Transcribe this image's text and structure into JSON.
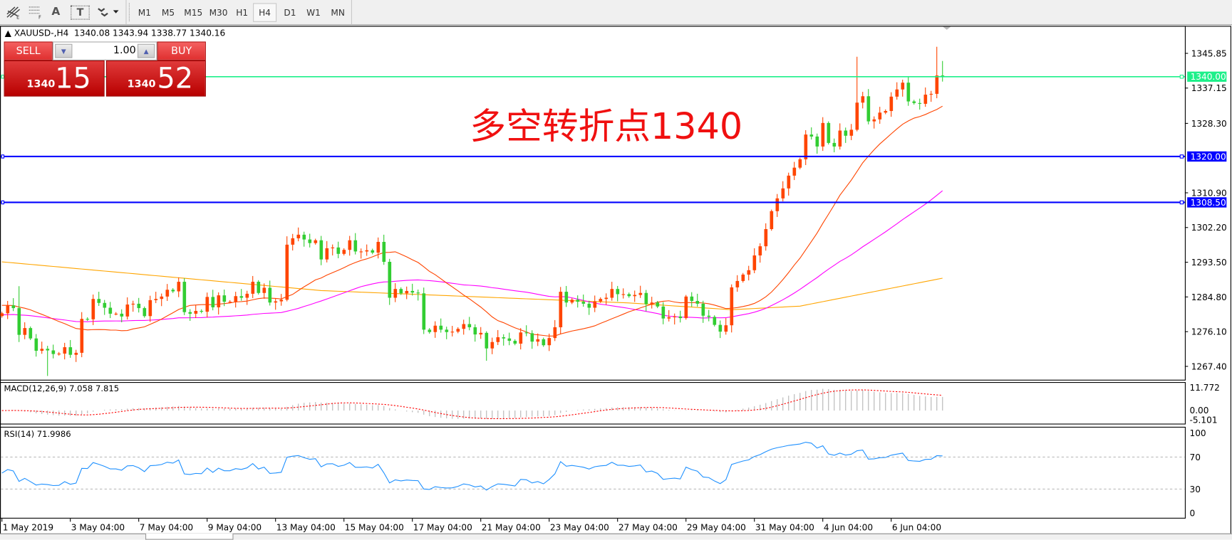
{
  "toolbar": {
    "tools": [
      {
        "icon": "fibonacci-fan-icon",
        "sub": "E"
      },
      {
        "icon": "fibonacci-grid-icon",
        "sub": "F"
      },
      {
        "icon": "text-icon",
        "label": "A"
      },
      {
        "icon": "text-label-icon",
        "label": "T"
      },
      {
        "icon": "arrows-dropdown-icon"
      }
    ],
    "timeframes": [
      "M1",
      "M5",
      "M15",
      "M30",
      "H1",
      "H4",
      "D1",
      "W1",
      "MN"
    ],
    "active_timeframe": "H4"
  },
  "chart": {
    "symbol": "XAUUSD-,H4",
    "ohlc": "1340.08 1343.94 1338.77 1340.16",
    "annotation": "多空转折点1340"
  },
  "trade": {
    "sell_label": "SELL",
    "buy_label": "BUY",
    "lot": "1.00",
    "sell_prefix": "1340",
    "sell_big": "15",
    "buy_prefix": "1340",
    "buy_big": "52"
  },
  "price_axis": {
    "ticks": [
      "1345.85",
      "1337.15",
      "1328.30",
      "1310.90",
      "1302.20",
      "1293.50",
      "1284.80",
      "1276.10",
      "1267.40"
    ],
    "levels": [
      {
        "price": 1340.0,
        "label": "1340.00",
        "color": "#1ef08a"
      },
      {
        "price": 1320.0,
        "label": "1320.00",
        "color": "#0000ff"
      },
      {
        "price": 1308.5,
        "label": "1308.50",
        "color": "#0000ff"
      }
    ]
  },
  "macd": {
    "label": "MACD(12,26,9) 7.058 7.815",
    "axis": [
      "11.772",
      "0.00",
      "-5.101"
    ],
    "range": [
      -5.101,
      11.772
    ]
  },
  "rsi": {
    "label": "RSI(14) 71.9986",
    "axis": [
      "100",
      "70",
      "30",
      "0"
    ]
  },
  "dates": [
    "1 May 2019",
    "3 May 04:00",
    "7 May 04:00",
    "9 May 04:00",
    "13 May 04:00",
    "15 May 04:00",
    "17 May 04:00",
    "21 May 04:00",
    "23 May 04:00",
    "27 May 04:00",
    "29 May 04:00",
    "31 May 04:00",
    "4 Jun 04:00",
    "6 Jun 04:00"
  ],
  "colors": {
    "bull": "#ff4500",
    "bear": "#32cd32",
    "ma_fast": "#ff4500",
    "ma_mid": "#ff00ff",
    "ma_slow": "#ffa500",
    "rsi": "#1e90ff",
    "macd_hist": "#c0c0c0",
    "macd_signal": "#ff0000"
  },
  "chart_data": {
    "type": "candlestick",
    "price_range": [
      1263.5,
      1349.0
    ],
    "first_open": 1280.0,
    "close": [
      1280.7,
      1282.7,
      1282.0,
      1275.3,
      1277.0,
      1274.4,
      1271.3,
      1271.8,
      1271.4,
      1270.5,
      1270.6,
      1272.2,
      1270.3,
      1270.8,
      1279.3,
      1279.2,
      1284.3,
      1283.3,
      1282.1,
      1280.6,
      1280.6,
      1279.9,
      1282.9,
      1283.1,
      1282.0,
      1280.0,
      1284.0,
      1284.3,
      1284.9,
      1286.6,
      1286.2,
      1288.6,
      1281.0,
      1280.6,
      1281.3,
      1281.1,
      1284.8,
      1282.2,
      1285.2,
      1283.6,
      1283.6,
      1285.0,
      1284.6,
      1285.6,
      1288.6,
      1285.8,
      1287.1,
      1283.4,
      1283.7,
      1284.1,
      1297.9,
      1299.5,
      1300.4,
      1299.2,
      1298.3,
      1299.0,
      1294.2,
      1297.0,
      1297.2,
      1295.6,
      1296.6,
      1299.0,
      1296.2,
      1296.2,
      1296.5,
      1295.9,
      1298.6,
      1293.6,
      1284.6,
      1286.8,
      1285.7,
      1286.3,
      1285.9,
      1285.7,
      1276.6,
      1276.0,
      1277.6,
      1276.6,
      1276.0,
      1276.1,
      1276.8,
      1278.0,
      1277.2,
      1275.4,
      1275.8,
      1271.9,
      1273.5,
      1274.7,
      1274.4,
      1273.8,
      1273.1,
      1275.9,
      1275.7,
      1273.6,
      1274.2,
      1272.7,
      1274.5,
      1277.2,
      1286.1,
      1283.4,
      1284.1,
      1283.6,
      1283.1,
      1282.1,
      1283.7,
      1284.3,
      1284.6,
      1286.8,
      1285.5,
      1285.5,
      1285.0,
      1285.3,
      1285.8,
      1283.0,
      1283.4,
      1282.4,
      1279.4,
      1279.7,
      1279.9,
      1279.5,
      1284.9,
      1283.8,
      1283.1,
      1280.1,
      1279.8,
      1277.8,
      1276.1,
      1277.7,
      1287.2,
      1288.8,
      1290.4,
      1291.5,
      1295.2,
      1297.5,
      1301.8,
      1306.3,
      1309.5,
      1312.0,
      1315.2,
      1317.2,
      1319.3,
      1325.5,
      1325.0,
      1322.5,
      1328.4,
      1323.4,
      1322.5,
      1326.5,
      1325.2,
      1326.7,
      1333.5,
      1335.1,
      1328.8,
      1329.3,
      1331.0,
      1331.4,
      1335.0,
      1336.8,
      1338.5,
      1333.8,
      1333.4,
      1333.2,
      1335.5,
      1335.7,
      1340.3,
      1340.16
    ],
    "notable_highs": {
      "3": 1287.5,
      "14": 1281.0,
      "32": 1289.5,
      "50": 1300.0,
      "98": 1287.3,
      "150": 1345.0,
      "164": 1347.5,
      "165": 1343.94
    },
    "notable_lows": {
      "8": 1265.0,
      "85": 1268.8,
      "126": 1274.5,
      "165": 1338.77
    },
    "ma_slow": [
      [
        0,
        1293.6
      ],
      [
        56,
        1286.4
      ],
      [
        110,
        1283.3
      ],
      [
        128,
        1281.6
      ],
      [
        140,
        1282.5
      ],
      [
        165,
        1289.5
      ]
    ]
  }
}
